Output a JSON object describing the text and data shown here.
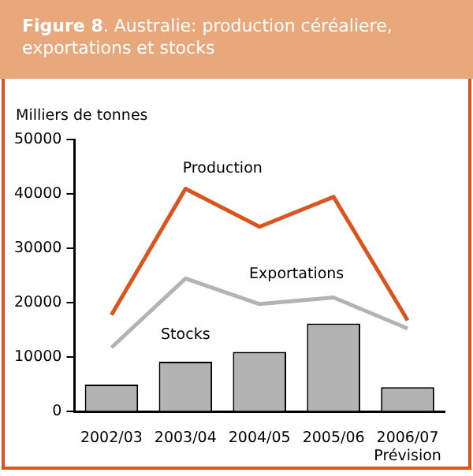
{
  "chart_data": {
    "type": "bar",
    "title": "Figure 8. Australie: production céréaliere, exportations et stocks",
    "ylabel": "Milliers de tonnes",
    "categories": [
      "2002/03",
      "2003/04",
      "2004/05",
      "2005/06",
      "2006/07\nPrévision"
    ],
    "series": [
      {
        "name": "Production",
        "type": "line",
        "color": "#d9541e",
        "values": [
          17800,
          41000,
          34000,
          39500,
          16800
        ]
      },
      {
        "name": "Exportations",
        "type": "line",
        "color": "#b3b3b3",
        "values": [
          11800,
          24500,
          19800,
          21000,
          15300
        ]
      },
      {
        "name": "Stocks",
        "color": "#b3b3b3",
        "values": [
          5000,
          9200,
          11000,
          16200,
          4500
        ]
      }
    ],
    "ylim": [
      0,
      50000
    ],
    "yticks": [
      0,
      10000,
      20000,
      30000,
      40000,
      50000
    ],
    "grid": false,
    "legend": false,
    "marker": "none"
  }
}
